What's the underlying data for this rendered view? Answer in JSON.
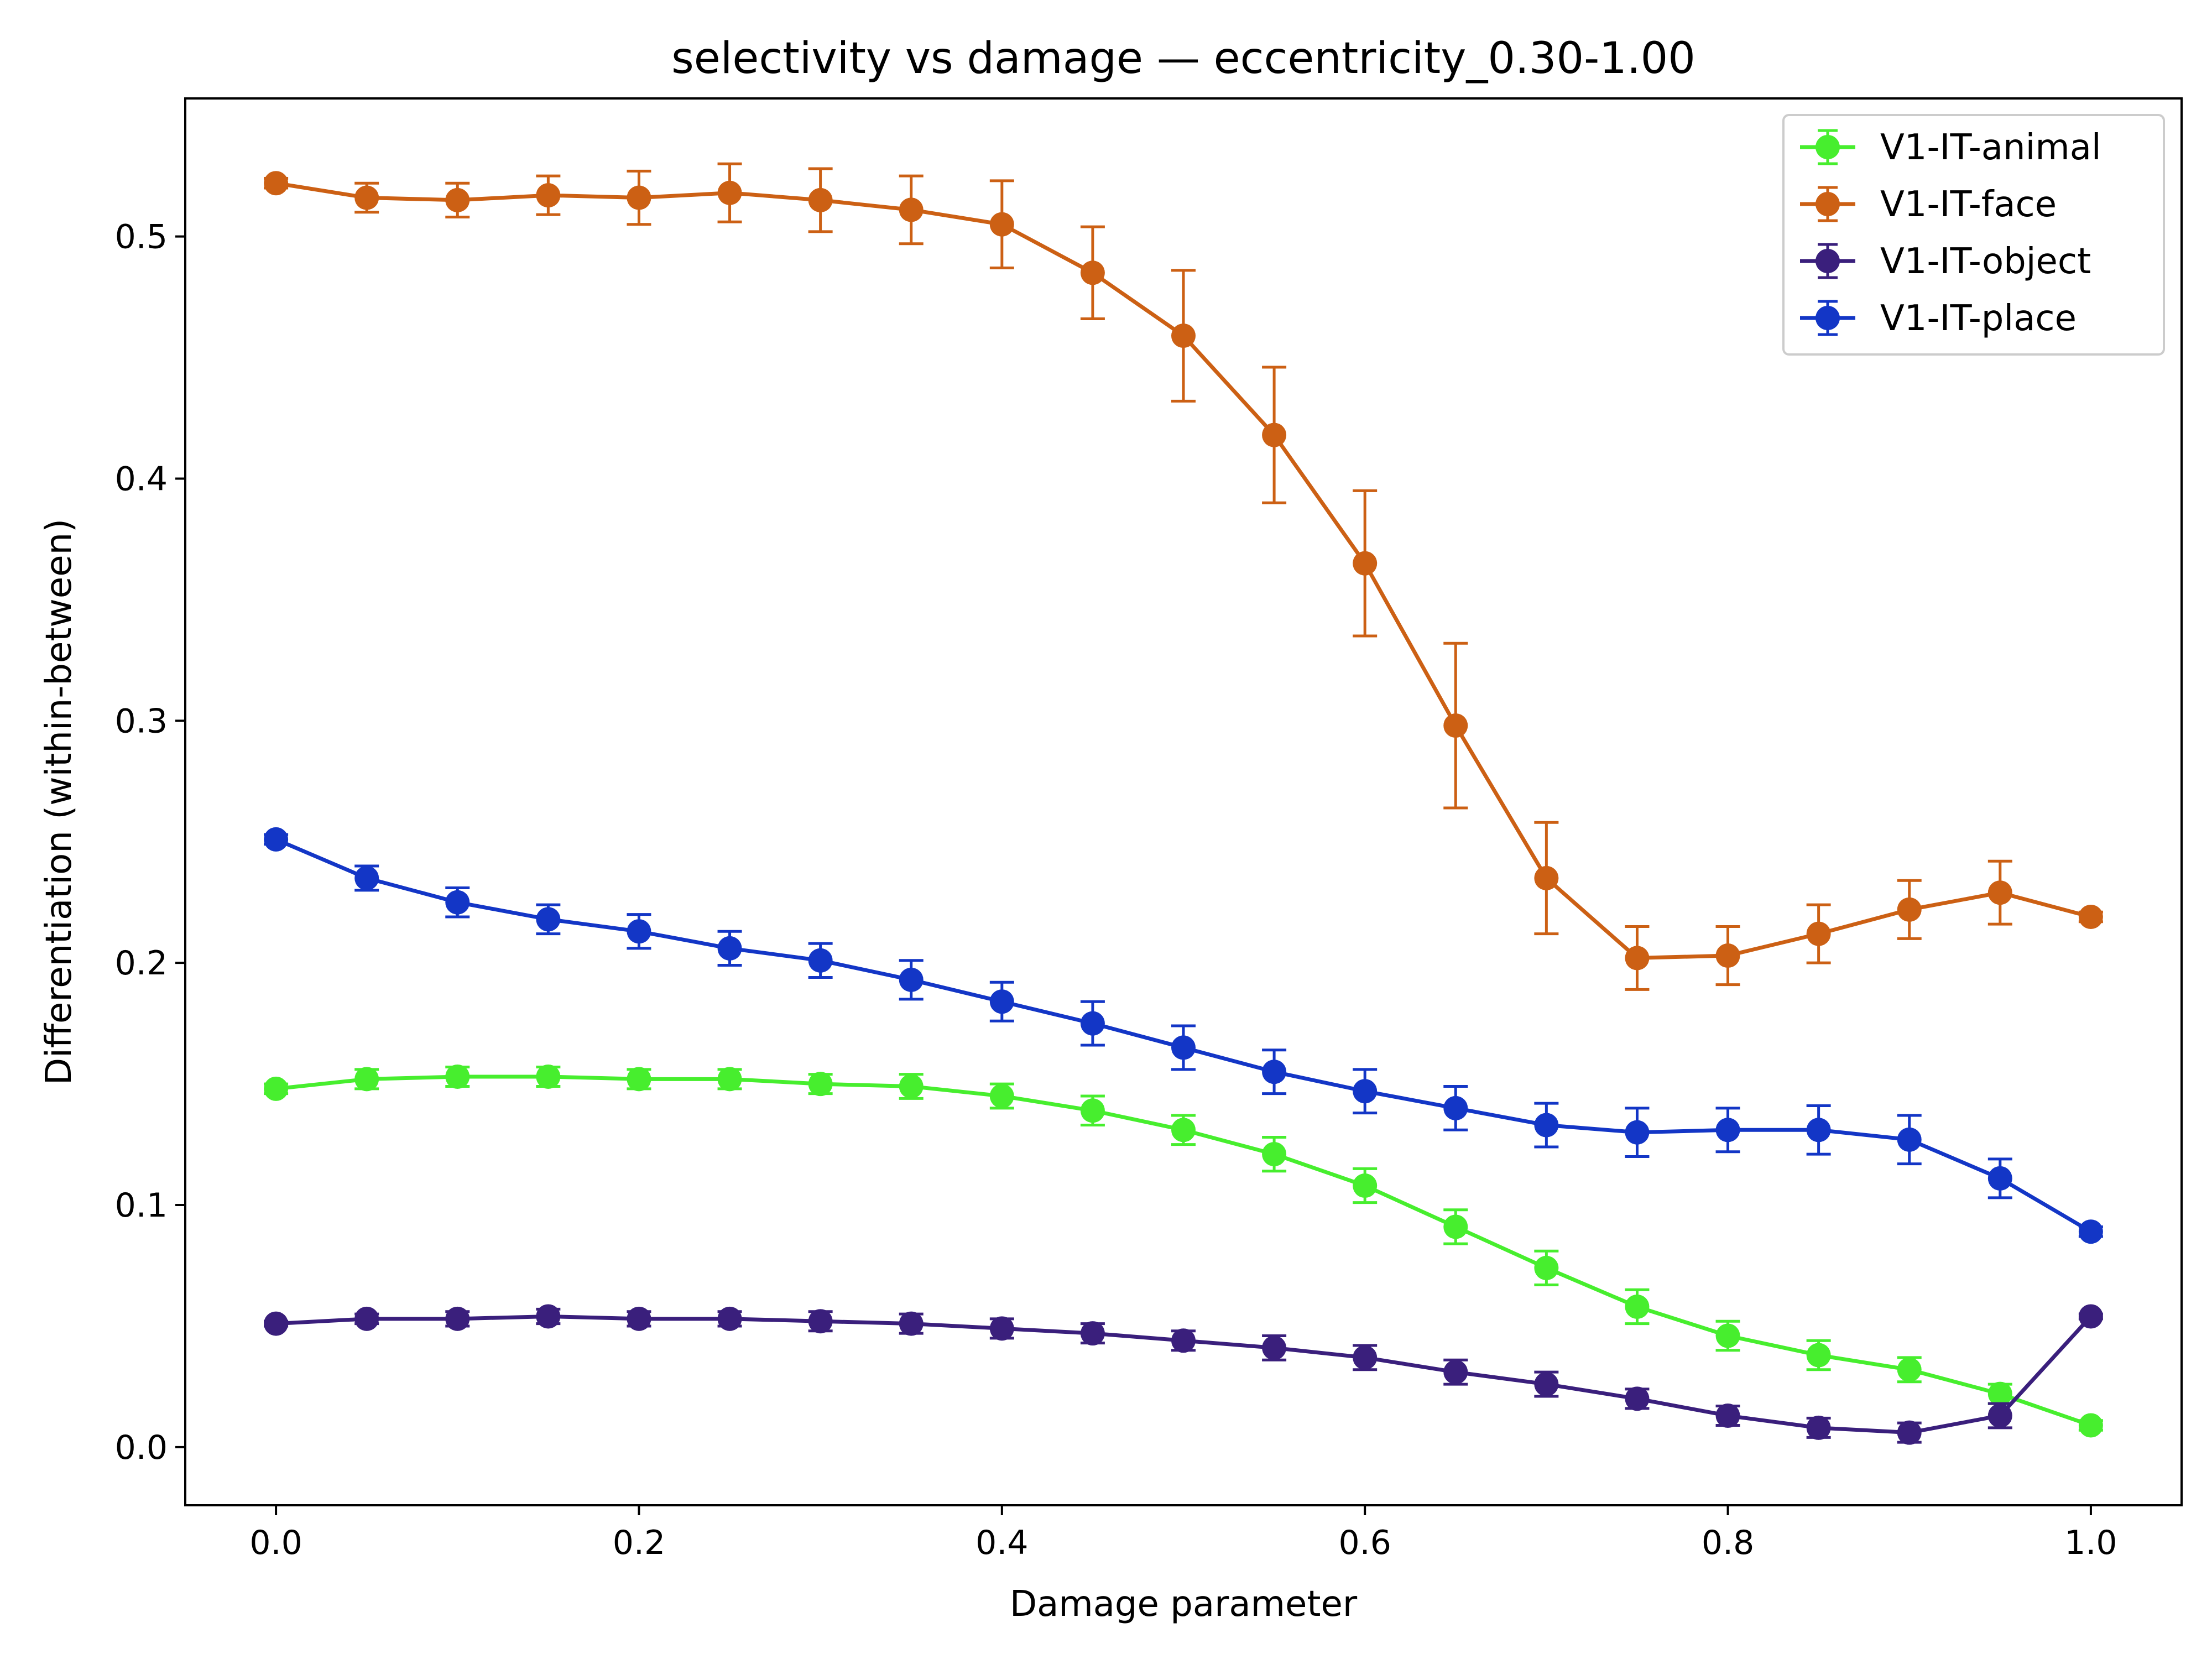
{
  "chart_data": {
    "type": "line",
    "title": "selectivity vs damage — eccentricity_0.30-1.00",
    "xlabel": "Damage parameter",
    "ylabel": "Differentiation (within-between)",
    "xlim": [
      -0.05,
      1.05
    ],
    "ylim": [
      -0.024,
      0.557
    ],
    "xticks": [
      0.0,
      0.2,
      0.4,
      0.6,
      0.8,
      1.0
    ],
    "xtick_labels": [
      "0.0",
      "0.2",
      "0.4",
      "0.6",
      "0.8",
      "1.0"
    ],
    "yticks": [
      0.0,
      0.1,
      0.2,
      0.3,
      0.4,
      0.5
    ],
    "ytick_labels": [
      "0.0",
      "0.1",
      "0.2",
      "0.3",
      "0.4",
      "0.5"
    ],
    "grid": false,
    "legend_position": "top-right",
    "error_bars": true,
    "x": [
      0.0,
      0.05,
      0.1,
      0.15,
      0.2,
      0.25,
      0.3,
      0.35,
      0.4,
      0.45,
      0.5,
      0.55,
      0.6,
      0.65,
      0.7,
      0.75,
      0.8,
      0.85,
      0.9,
      0.95,
      1.0
    ],
    "series": [
      {
        "name": "V1-IT-animal",
        "color": "#47ee2e",
        "values": [
          0.148,
          0.152,
          0.153,
          0.153,
          0.152,
          0.152,
          0.15,
          0.149,
          0.145,
          0.139,
          0.131,
          0.121,
          0.108,
          0.091,
          0.074,
          0.058,
          0.046,
          0.038,
          0.032,
          0.022,
          0.009
        ],
        "errors": [
          0.002,
          0.004,
          0.004,
          0.004,
          0.004,
          0.004,
          0.004,
          0.005,
          0.005,
          0.006,
          0.006,
          0.007,
          0.007,
          0.007,
          0.007,
          0.007,
          0.006,
          0.006,
          0.005,
          0.004,
          0.002
        ]
      },
      {
        "name": "V1-IT-face",
        "color": "#cc6014",
        "values": [
          0.522,
          0.516,
          0.515,
          0.517,
          0.516,
          0.518,
          0.515,
          0.511,
          0.505,
          0.485,
          0.459,
          0.418,
          0.365,
          0.298,
          0.235,
          0.202,
          0.203,
          0.212,
          0.222,
          0.229,
          0.219
        ],
        "errors": [
          0.002,
          0.006,
          0.007,
          0.008,
          0.011,
          0.012,
          0.013,
          0.014,
          0.018,
          0.019,
          0.027,
          0.028,
          0.03,
          0.034,
          0.023,
          0.013,
          0.012,
          0.012,
          0.012,
          0.013,
          0.002
        ]
      },
      {
        "name": "V1-IT-object",
        "color": "#3a1f7c",
        "values": [
          0.051,
          0.053,
          0.053,
          0.054,
          0.053,
          0.053,
          0.052,
          0.051,
          0.049,
          0.047,
          0.044,
          0.041,
          0.037,
          0.031,
          0.026,
          0.02,
          0.013,
          0.008,
          0.006,
          0.013,
          0.054
        ],
        "errors": [
          0.001,
          0.002,
          0.003,
          0.003,
          0.003,
          0.003,
          0.004,
          0.004,
          0.004,
          0.004,
          0.004,
          0.005,
          0.005,
          0.005,
          0.005,
          0.004,
          0.004,
          0.004,
          0.004,
          0.005,
          0.001
        ]
      },
      {
        "name": "V1-IT-place",
        "color": "#1336c6",
        "values": [
          0.251,
          0.235,
          0.225,
          0.218,
          0.213,
          0.206,
          0.201,
          0.193,
          0.184,
          0.175,
          0.165,
          0.155,
          0.147,
          0.14,
          0.133,
          0.13,
          0.131,
          0.131,
          0.127,
          0.111,
          0.089
        ],
        "errors": [
          0.002,
          0.005,
          0.006,
          0.006,
          0.007,
          0.007,
          0.007,
          0.008,
          0.008,
          0.009,
          0.009,
          0.009,
          0.009,
          0.009,
          0.009,
          0.01,
          0.009,
          0.01,
          0.01,
          0.008,
          0.002
        ]
      }
    ]
  }
}
